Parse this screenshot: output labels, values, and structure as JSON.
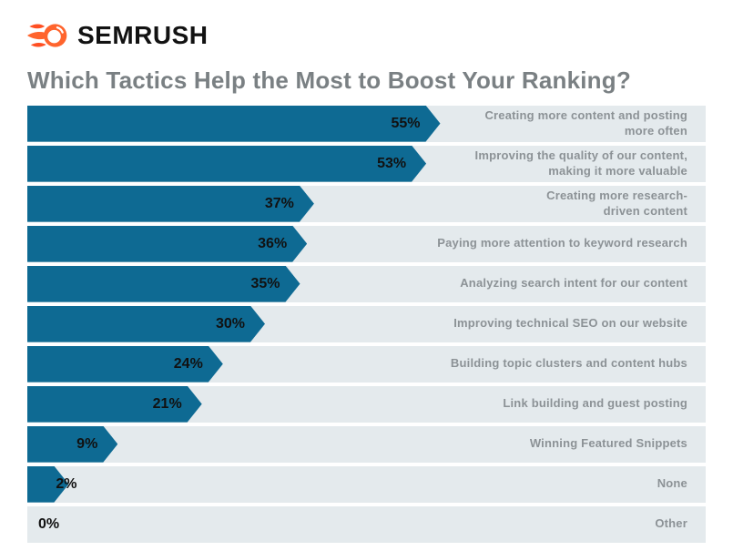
{
  "header": {
    "brand": "SEMRUSH"
  },
  "title": "Which Tactics Help the Most to Boost Your Ranking?",
  "colors": {
    "brand_orange": "#ff642d",
    "brand_orange_dark": "#ff4f22",
    "bar": "#0e6a93",
    "track": "#e4eaed",
    "title_text": "#7a8083",
    "category_text": "#8c9296",
    "value_text": "#111111"
  },
  "chart_data": {
    "type": "bar",
    "orientation": "horizontal",
    "title": "Which Tactics Help the Most to Boost Your Ranking?",
    "unit": "%",
    "xlim": [
      0,
      100
    ],
    "grid": false,
    "legend": false,
    "value_labels": "inside-bar-end",
    "category_labels": "right-aligned-on-track",
    "categories": [
      "Creating more content and posting\nmore often",
      "Improving the quality of our content,\nmaking it more valuable",
      "Creating more research-\ndriven content",
      "Paying more attention to keyword research",
      "Analyzing search intent for our content",
      "Improving technical SEO on our website",
      "Building topic clusters and content hubs",
      "Link building and guest posting",
      "Winning Featured Snippets",
      "None",
      "Other"
    ],
    "values": [
      55,
      53,
      37,
      36,
      35,
      30,
      24,
      21,
      9,
      2,
      0
    ]
  }
}
